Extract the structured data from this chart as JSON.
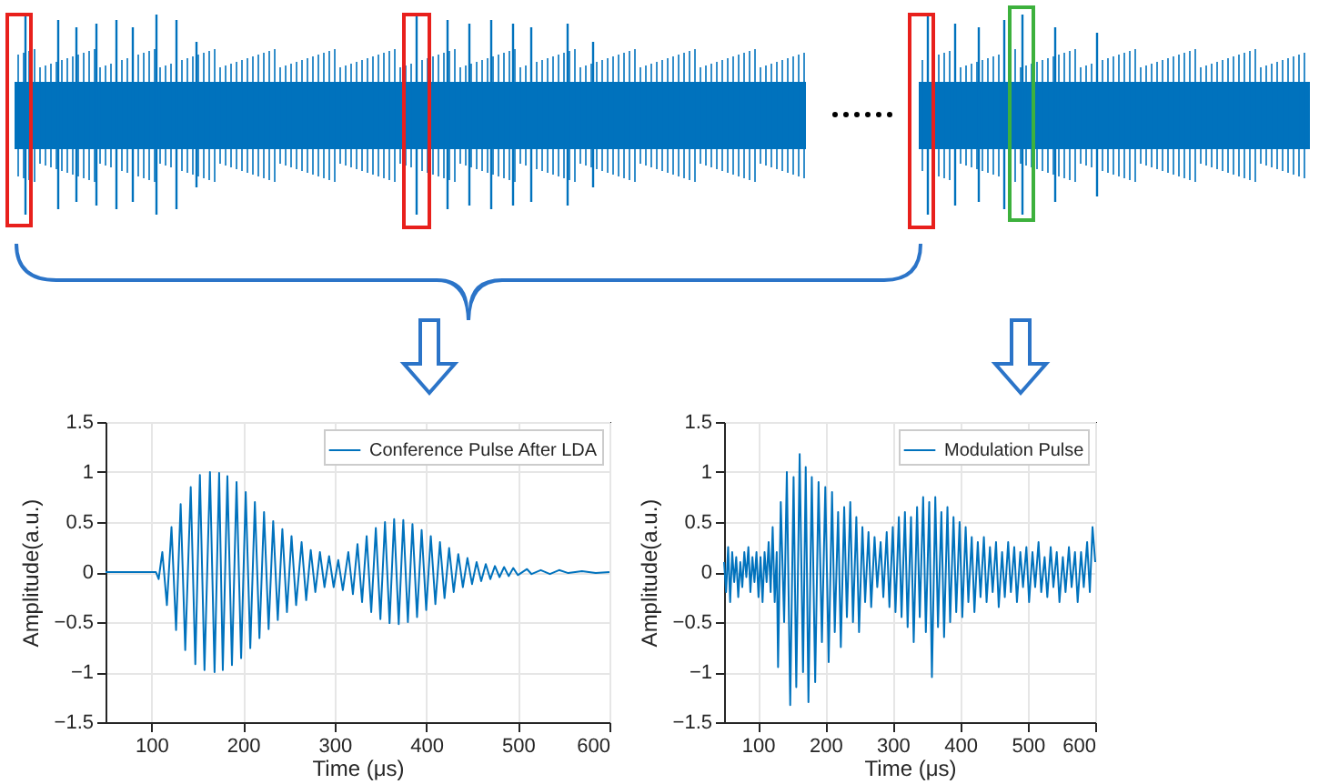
{
  "chart_data": [
    {
      "type": "line",
      "xlabel": "Time (μs)",
      "ylabel": "Amplitude(a.u.)",
      "xlim": [
        50,
        600
      ],
      "xticks": [
        100,
        200,
        300,
        400,
        500,
        600
      ],
      "ylim": [
        -1.5,
        1.5
      ],
      "yticks": [
        -1.5,
        -1,
        -0.5,
        0,
        0.5,
        1,
        1.5
      ],
      "grid": true,
      "legend": "top right",
      "series": [
        {
          "name": "Conference Pulse After LDA",
          "color": "#0072bd",
          "x": [
            50,
            105,
            108,
            112,
            117,
            122,
            127,
            132,
            137,
            143,
            148,
            153,
            158,
            164,
            169,
            174,
            178,
            183,
            188,
            193,
            198,
            203,
            208,
            213,
            218,
            223,
            228,
            233,
            238,
            243,
            248,
            253,
            258,
            264,
            269,
            274,
            279,
            284,
            289,
            294,
            299,
            304,
            309,
            315,
            320,
            325,
            330,
            335,
            340,
            345,
            350,
            355,
            360,
            365,
            370,
            375,
            380,
            385,
            390,
            395,
            400,
            405,
            410,
            415,
            420,
            425,
            430,
            435,
            440,
            445,
            450,
            455,
            460,
            465,
            470,
            475,
            480,
            485,
            490,
            495,
            500,
            510,
            515,
            525,
            535,
            545,
            555,
            570,
            585,
            600
          ],
          "values": [
            0,
            0,
            -0.07,
            0.2,
            -0.33,
            0.45,
            -0.58,
            0.68,
            -0.78,
            0.85,
            -0.92,
            0.97,
            -0.98,
            1.0,
            -1.0,
            0.99,
            -0.98,
            0.96,
            -0.93,
            0.9,
            -0.86,
            0.8,
            -0.76,
            0.7,
            -0.66,
            0.6,
            -0.57,
            0.51,
            -0.48,
            0.43,
            -0.4,
            0.36,
            -0.33,
            0.3,
            -0.28,
            0.22,
            -0.2,
            0.2,
            -0.15,
            0.16,
            -0.15,
            0.12,
            -0.18,
            0.2,
            -0.22,
            0.28,
            -0.3,
            0.36,
            -0.4,
            0.44,
            -0.47,
            0.5,
            -0.51,
            0.53,
            -0.52,
            0.52,
            -0.5,
            0.48,
            -0.45,
            0.42,
            -0.38,
            0.36,
            -0.32,
            0.3,
            -0.26,
            0.24,
            -0.2,
            0.18,
            -0.15,
            0.14,
            -0.12,
            0.1,
            -0.09,
            0.08,
            -0.07,
            0.06,
            -0.05,
            0.05,
            -0.04,
            0.04,
            -0.03,
            0.03,
            -0.02,
            0.02,
            -0.02,
            0.02,
            -0.01,
            0.01,
            -0.01,
            0
          ]
        }
      ]
    },
    {
      "type": "line",
      "xlabel": "Time (μs)",
      "ylabel": "Amplitude(a.u.)",
      "xlim": [
        50,
        600
      ],
      "xticks": [
        100,
        200,
        300,
        400,
        500,
        600
      ],
      "ylim": [
        -1.5,
        1.5
      ],
      "yticks": [
        -1.5,
        -1,
        -0.5,
        0,
        0.5,
        1,
        1.5
      ],
      "grid": true,
      "legend": "top right",
      "series": [
        {
          "name": "Modulation Pulse",
          "color": "#0072bd",
          "x": [
            50,
            53,
            56,
            59,
            62,
            65,
            68,
            71,
            74,
            77,
            80,
            83,
            86,
            89,
            92,
            95,
            98,
            101,
            104,
            107,
            110,
            113,
            116,
            119,
            122,
            125,
            128,
            130,
            134,
            139,
            143,
            148,
            153,
            157,
            162,
            167,
            171,
            175,
            180,
            185,
            190,
            195,
            200,
            205,
            210,
            214,
            219,
            223,
            228,
            232,
            237,
            241,
            246,
            250,
            255,
            259,
            264,
            268,
            273,
            277,
            282,
            286,
            291,
            295,
            300,
            304,
            309,
            313,
            318,
            322,
            327,
            331,
            336,
            340,
            345,
            349,
            354,
            358,
            363,
            367,
            372,
            376,
            381,
            385,
            390,
            394,
            399,
            403,
            408,
            412,
            417,
            421,
            426,
            430,
            435,
            439,
            444,
            448,
            453,
            457,
            462,
            466,
            471,
            475,
            480,
            484,
            489,
            493,
            498,
            502,
            507,
            511,
            516,
            520,
            525,
            529,
            534,
            538,
            543,
            547,
            552,
            556,
            561,
            565,
            570,
            574,
            579,
            583,
            588,
            592,
            596,
            600
          ],
          "values": [
            0.1,
            -0.2,
            0.25,
            -0.3,
            0.2,
            -0.1,
            0.15,
            -0.25,
            0.1,
            -0.15,
            0.2,
            -0.05,
            0.25,
            -0.2,
            0.15,
            -0.1,
            0.2,
            -0.25,
            0.15,
            -0.3,
            0.2,
            -0.1,
            0.3,
            -0.2,
            0.45,
            -0.3,
            0.2,
            -0.95,
            0.7,
            -0.5,
            1.0,
            -1.33,
            0.95,
            -1.15,
            1.18,
            -1.0,
            1.05,
            -1.3,
            0.95,
            -1.1,
            0.9,
            -0.7,
            0.85,
            -0.9,
            0.8,
            -0.6,
            0.6,
            -0.75,
            0.65,
            -0.45,
            0.7,
            -0.5,
            0.55,
            -0.6,
            0.45,
            -0.3,
            0.4,
            -0.35,
            0.35,
            -0.15,
            0.3,
            -0.25,
            0.4,
            -0.35,
            0.45,
            -0.4,
            0.55,
            -0.45,
            0.6,
            -0.55,
            0.55,
            -0.7,
            0.65,
            -0.45,
            0.75,
            -0.6,
            0.7,
            -1.05,
            0.75,
            -0.55,
            0.6,
            -0.65,
            0.65,
            -0.5,
            0.55,
            -0.4,
            0.5,
            -0.45,
            0.45,
            -0.3,
            0.35,
            -0.4,
            0.3,
            -0.25,
            0.35,
            -0.3,
            0.25,
            -0.2,
            0.3,
            -0.35,
            0.2,
            -0.25,
            0.3,
            -0.2,
            0.25,
            -0.3,
            0.2,
            -0.15,
            0.25,
            -0.3,
            0.2,
            -0.15,
            0.3,
            -0.2,
            0.15,
            -0.25,
            0.25,
            -0.15,
            0.2,
            -0.3,
            0.15,
            -0.2,
            0.25,
            -0.15,
            0.2,
            -0.3,
            0.2,
            -0.15,
            0.3,
            -0.2,
            0.45,
            0.1
          ]
        }
      ]
    }
  ]
}
